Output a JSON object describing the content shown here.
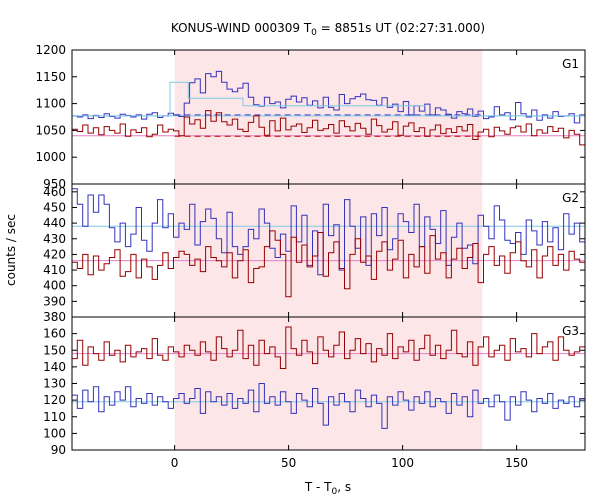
{
  "chart_data": {
    "type": "line",
    "title": "KONUS-WIND 000309 T",
    "title_sub": "0",
    "title_rest": " = 8851s UT (02:27:31.000)",
    "ylabel": "counts / sec",
    "xlabel_main": "T - T",
    "xlabel_sub": "0",
    "xlabel_rest": ", s",
    "xlim": [
      -45,
      180
    ],
    "xticks": [
      0,
      50,
      100,
      150
    ],
    "shade_range": [
      0,
      135
    ],
    "colors": {
      "blue": "#3333bb",
      "red": "#990000",
      "cyan": "#7fc8e6",
      "pink": "#e080c8",
      "shade": "#fde6e8",
      "red_dash": "#c00000",
      "blue_dash": "#4040cc"
    },
    "panels": [
      {
        "label": "G1",
        "ylim": [
          950,
          1200
        ],
        "yticks": [
          950,
          1000,
          1050,
          1100,
          1150,
          1200
        ],
        "series": [
          {
            "color_key": "blue",
            "values": [
              1077,
              1075,
              1079,
              1072,
              1078,
              1074,
              1081,
              1076,
              1073,
              1080,
              1078,
              1075,
              1079,
              1071,
              1080,
              1083,
              1074,
              1077,
              1082,
              1079,
              1076,
              1101,
              1139,
              1146,
              1120,
              1156,
              1150,
              1160,
              1140,
              1127,
              1122,
              1129,
              1138,
              1112,
              1098,
              1095,
              1112,
              1100,
              1103,
              1092,
              1108,
              1114,
              1103,
              1111,
              1097,
              1105,
              1092,
              1112,
              1093,
              1088,
              1117,
              1100,
              1109,
              1113,
              1118,
              1107,
              1106,
              1097,
              1111,
              1093,
              1099,
              1085,
              1104,
              1079,
              1096,
              1086,
              1099,
              1079,
              1092,
              1088,
              1080,
              1073,
              1085,
              1081,
              1090,
              1076,
              1086,
              1072,
              1075,
              1094,
              1079,
              1083,
              1070,
              1102,
              1081,
              1075,
              1088,
              1069,
              1079,
              1073,
              1085,
              1076,
              1077,
              1081,
              1064,
              1079
            ]
          },
          {
            "color_key": "red",
            "values": [
              1052,
              1048,
              1060,
              1045,
              1055,
              1042,
              1057,
              1050,
              1045,
              1062,
              1039,
              1051,
              1046,
              1055,
              1038,
              1043,
              1060,
              1047,
              1052,
              1049,
              1040,
              1075,
              1062,
              1070,
              1054,
              1087,
              1067,
              1083,
              1066,
              1060,
              1071,
              1052,
              1048,
              1065,
              1077,
              1056,
              1041,
              1068,
              1049,
              1073,
              1051,
              1058,
              1062,
              1046,
              1055,
              1069,
              1050,
              1053,
              1061,
              1045,
              1068,
              1057,
              1049,
              1063,
              1054,
              1043,
              1071,
              1059,
              1047,
              1052,
              1066,
              1041,
              1058,
              1064,
              1048,
              1055,
              1039,
              1051,
              1060,
              1044,
              1053,
              1046,
              1057,
              1049,
              1061,
              1033,
              1047,
              1052,
              1038,
              1056,
              1049,
              1043,
              1055,
              1058,
              1047,
              1062,
              1040,
              1051,
              1045,
              1057,
              1048,
              1054,
              1036,
              1050,
              1043,
              1023
            ]
          }
        ],
        "ref_lines": [
          {
            "color_key": "cyan",
            "y": 1077,
            "from": -45,
            "to": 180,
            "dash": false
          },
          {
            "color_key": "pink",
            "y": 1040,
            "from": -45,
            "to": 180,
            "dash": false
          },
          {
            "color_key": "blue_dash",
            "y": 1079,
            "from": 0,
            "to": 135,
            "dash": true
          },
          {
            "color_key": "red_dash",
            "y": 1039,
            "from": 0,
            "to": 135,
            "dash": true
          }
        ],
        "fit_step": {
          "color_key": "cyan",
          "points": [
            [
              -45,
              1077
            ],
            [
              -2,
              1077
            ],
            [
              -2,
              1140
            ],
            [
              6,
              1140
            ],
            [
              6,
              1110
            ],
            [
              30,
              1110
            ],
            [
              30,
              1096
            ],
            [
              110,
              1096
            ],
            [
              110,
              1077
            ],
            [
              180,
              1077
            ]
          ]
        }
      },
      {
        "label": "G2",
        "ylim": [
          380,
          465
        ],
        "yticks": [
          380,
          390,
          400,
          410,
          420,
          430,
          440,
          450,
          460
        ],
        "series": [
          {
            "color_key": "blue",
            "values": [
              462,
              452,
              438,
              458,
              447,
              458,
              452,
              437,
              428,
              440,
              425,
              433,
              450,
              429,
              422,
              440,
              455,
              437,
              446,
              431,
              440,
              436,
              452,
              426,
              441,
              449,
              443,
              430,
              421,
              447,
              425,
              420,
              425,
              436,
              430,
              449,
              440,
              424,
              418,
              433,
              422,
              451,
              428,
              445,
              413,
              435,
              407,
              452,
              432,
              439,
              410,
              455,
              438,
              424,
              444,
              413,
              446,
              432,
              450,
              423,
              430,
              446,
              441,
              434,
              452,
              425,
              444,
              436,
              427,
              448,
              413,
              431,
              440,
              424,
              426,
              414,
              445,
              438,
              430,
              451,
              442,
              429,
              427,
              434,
              420,
              442,
              435,
              426,
              441,
              428,
              437,
              423,
              446,
              433,
              440,
              428
            ]
          },
          {
            "color_key": "red",
            "values": [
              415,
              411,
              420,
              407,
              419,
              410,
              414,
              418,
              423,
              406,
              409,
              420,
              405,
              417,
              412,
              404,
              413,
              421,
              411,
              418,
              422,
              420,
              413,
              417,
              409,
              425,
              418,
              416,
              412,
              421,
              405,
              416,
              423,
              402,
              411,
              412,
              425,
              435,
              429,
              420,
              393,
              431,
              415,
              426,
              412,
              419,
              434,
              406,
              421,
              428,
              411,
              398,
              420,
              430,
              415,
              419,
              404,
              422,
              428,
              410,
              417,
              429,
              405,
              420,
              412,
              425,
              408,
              432,
              417,
              421,
              405,
              417,
              424,
              411,
              418,
              427,
              402,
              420,
              425,
              413,
              419,
              408,
              421,
              428,
              416,
              412,
              423,
              405,
              419,
              425,
              413,
              420,
              410,
              422,
              417,
              415
            ]
          }
        ],
        "ref_lines": [
          {
            "color_key": "cyan",
            "y": 438,
            "from": -45,
            "to": 180,
            "dash": false
          },
          {
            "color_key": "pink",
            "y": 416,
            "from": -45,
            "to": 180,
            "dash": false
          }
        ]
      },
      {
        "label": "G3",
        "ylim": [
          90,
          170
        ],
        "yticks": [
          90,
          100,
          110,
          120,
          130,
          140,
          150,
          160
        ],
        "series": [
          {
            "color_key": "red",
            "values": [
              145,
              156,
              141,
              152,
              148,
              144,
              155,
              147,
              150,
              143,
              153,
              146,
              149,
              151,
              145,
              157,
              147,
              144,
              152,
              149,
              146,
              153,
              150,
              147,
              155,
              149,
              144,
              158,
              151,
              146,
              150,
              162,
              145,
              153,
              141,
              156,
              148,
              152,
              146,
              139,
              164,
              151,
              147,
              156,
              149,
              142,
              158,
              150,
              146,
              153,
              161,
              145,
              150,
              157,
              148,
              154,
              143,
              151,
              147,
              160,
              145,
              152,
              149,
              156,
              144,
              151,
              159,
              147,
              153,
              145,
              150,
              162,
              148,
              146,
              155,
              141,
              152,
              158,
              146,
              150,
              153,
              144,
              157,
              149,
              151,
              146,
              160,
              148,
              152,
              155,
              144,
              158,
              150,
              147,
              149,
              152
            ]
          },
          {
            "color_key": "blue",
            "values": [
              123,
              115,
              126,
              119,
              128,
              113,
              122,
              117,
              125,
              120,
              128,
              116,
              121,
              118,
              124,
              117,
              122,
              119,
              115,
              121,
              124,
              118,
              121,
              127,
              112,
              125,
              119,
              122,
              117,
              124,
              115,
              121,
              118,
              126,
              113,
              130,
              118,
              122,
              117,
              125,
              119,
              112,
              124,
              120,
              116,
              127,
              118,
              105,
              122,
              117,
              124,
              119,
              113,
              126,
              121,
              116,
              123,
              118,
              103,
              122,
              117,
              125,
              120,
              114,
              122,
              118,
              125,
              116,
              121,
              119,
              112,
              124,
              117,
              122,
              110,
              126,
              118,
              121,
              116,
              123,
              119,
              108,
              122,
              117,
              125,
              120,
              113,
              121,
              118,
              124,
              115,
              120,
              118,
              122,
              116,
              121
            ]
          }
        ],
        "ref_lines": [
          {
            "color_key": "pink",
            "y": 148,
            "from": -45,
            "to": 180,
            "dash": false
          },
          {
            "color_key": "cyan",
            "y": 119,
            "from": -45,
            "to": 180,
            "dash": false
          }
        ]
      }
    ]
  }
}
